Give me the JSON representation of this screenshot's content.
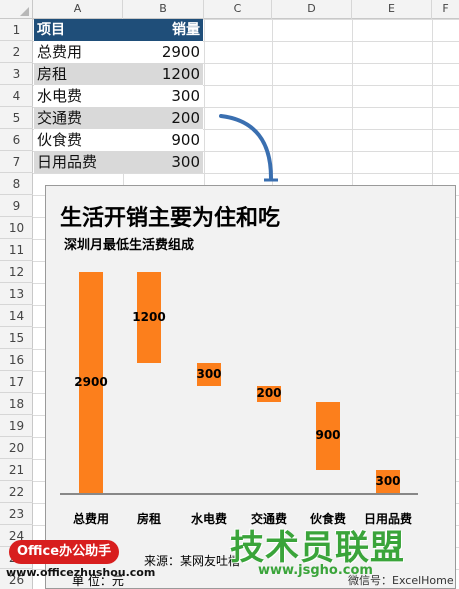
{
  "columns": [
    "A",
    "B",
    "C",
    "D",
    "E",
    "F"
  ],
  "rows": [
    "1",
    "2",
    "3",
    "4",
    "5",
    "6",
    "7",
    "8",
    "9",
    "10",
    "11",
    "12",
    "13",
    "14",
    "15",
    "16",
    "17",
    "18",
    "19",
    "20",
    "21",
    "22",
    "23",
    "24",
    "25",
    "26"
  ],
  "table": {
    "header": {
      "a": "项目",
      "b": "销量"
    },
    "items": [
      {
        "a": "总费用",
        "b": "2900"
      },
      {
        "a": "房租",
        "b": "1200"
      },
      {
        "a": "水电费",
        "b": "300"
      },
      {
        "a": "交通费",
        "b": "200"
      },
      {
        "a": "伙食费",
        "b": "900"
      },
      {
        "a": "日用品费",
        "b": "300"
      }
    ]
  },
  "colors": {
    "header_bg": "#1f4e79",
    "shade": "#d9d9d9",
    "bar": "#fc7f1c",
    "arrow": "#3a6fb0"
  },
  "chart_data": {
    "type": "bar",
    "subtype": "waterfall",
    "title": "生活开销主要为住和吃",
    "subtitle": "深圳月最低生活费组成",
    "categories": [
      "总费用",
      "房租",
      "水电费",
      "交通费",
      "伙食费",
      "日用品费"
    ],
    "values": [
      2900,
      1200,
      300,
      200,
      900,
      300
    ],
    "ylim": [
      0,
      2900
    ],
    "grid": false,
    "legend": "none"
  },
  "chart_footer": {
    "source": "来源：某网友吐槽",
    "unit": "单    位：元",
    "weixin": "微信号：ExcelHome"
  },
  "watermarks": {
    "office": "Office办公助手",
    "office_url": "www.officezhushou.com",
    "jsgho": "技术员联盟",
    "jsgho_url": "www.jsgho.com"
  }
}
